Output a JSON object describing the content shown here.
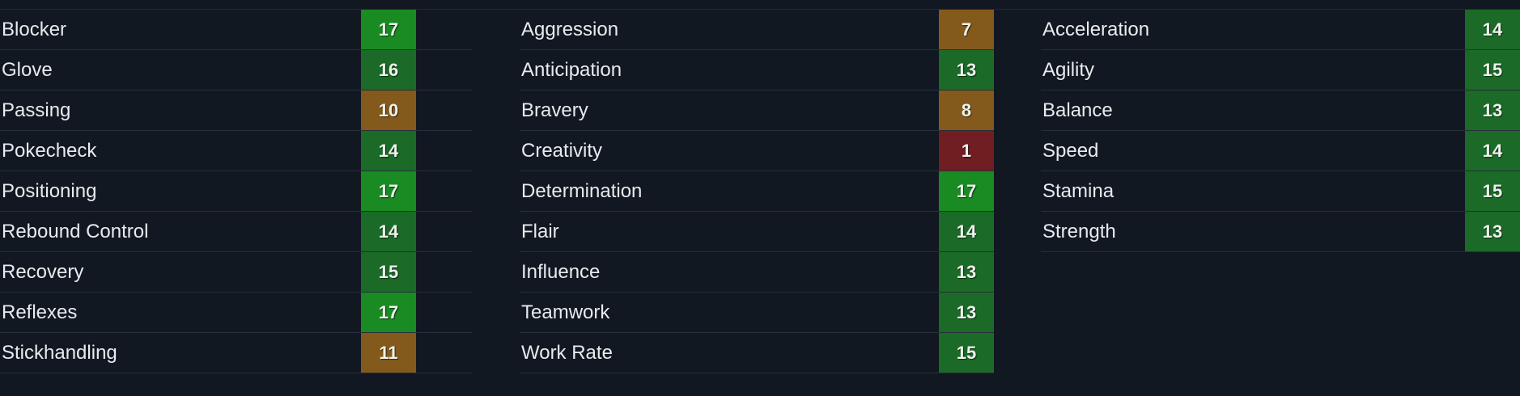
{
  "colors": {
    "background": "#121821",
    "divider": "#262f3a",
    "text": "#e8ebee",
    "value_text": "#eef2ee",
    "tier_elite": "#1a8a23",
    "tier_good": "#1c6a27",
    "tier_average": "#845a1c",
    "tier_poor": "#701e22"
  },
  "columns": [
    {
      "attributes": [
        {
          "name": "Blocker",
          "value": "17",
          "tier": "elite"
        },
        {
          "name": "Glove",
          "value": "16",
          "tier": "good"
        },
        {
          "name": "Passing",
          "value": "10",
          "tier": "average"
        },
        {
          "name": "Pokecheck",
          "value": "14",
          "tier": "good"
        },
        {
          "name": "Positioning",
          "value": "17",
          "tier": "elite"
        },
        {
          "name": "Rebound Control",
          "value": "14",
          "tier": "good"
        },
        {
          "name": "Recovery",
          "value": "15",
          "tier": "good"
        },
        {
          "name": "Reflexes",
          "value": "17",
          "tier": "elite"
        },
        {
          "name": "Stickhandling",
          "value": "11",
          "tier": "average"
        }
      ]
    },
    {
      "attributes": [
        {
          "name": "Aggression",
          "value": "7",
          "tier": "average"
        },
        {
          "name": "Anticipation",
          "value": "13",
          "tier": "good"
        },
        {
          "name": "Bravery",
          "value": "8",
          "tier": "average"
        },
        {
          "name": "Creativity",
          "value": "1",
          "tier": "poor"
        },
        {
          "name": "Determination",
          "value": "17",
          "tier": "elite"
        },
        {
          "name": "Flair",
          "value": "14",
          "tier": "good"
        },
        {
          "name": "Influence",
          "value": "13",
          "tier": "good"
        },
        {
          "name": "Teamwork",
          "value": "13",
          "tier": "good"
        },
        {
          "name": "Work Rate",
          "value": "15",
          "tier": "good"
        }
      ]
    },
    {
      "attributes": [
        {
          "name": "Acceleration",
          "value": "14",
          "tier": "good"
        },
        {
          "name": "Agility",
          "value": "15",
          "tier": "good"
        },
        {
          "name": "Balance",
          "value": "13",
          "tier": "good"
        },
        {
          "name": "Speed",
          "value": "14",
          "tier": "good"
        },
        {
          "name": "Stamina",
          "value": "15",
          "tier": "good"
        },
        {
          "name": "Strength",
          "value": "13",
          "tier": "good"
        }
      ]
    }
  ]
}
